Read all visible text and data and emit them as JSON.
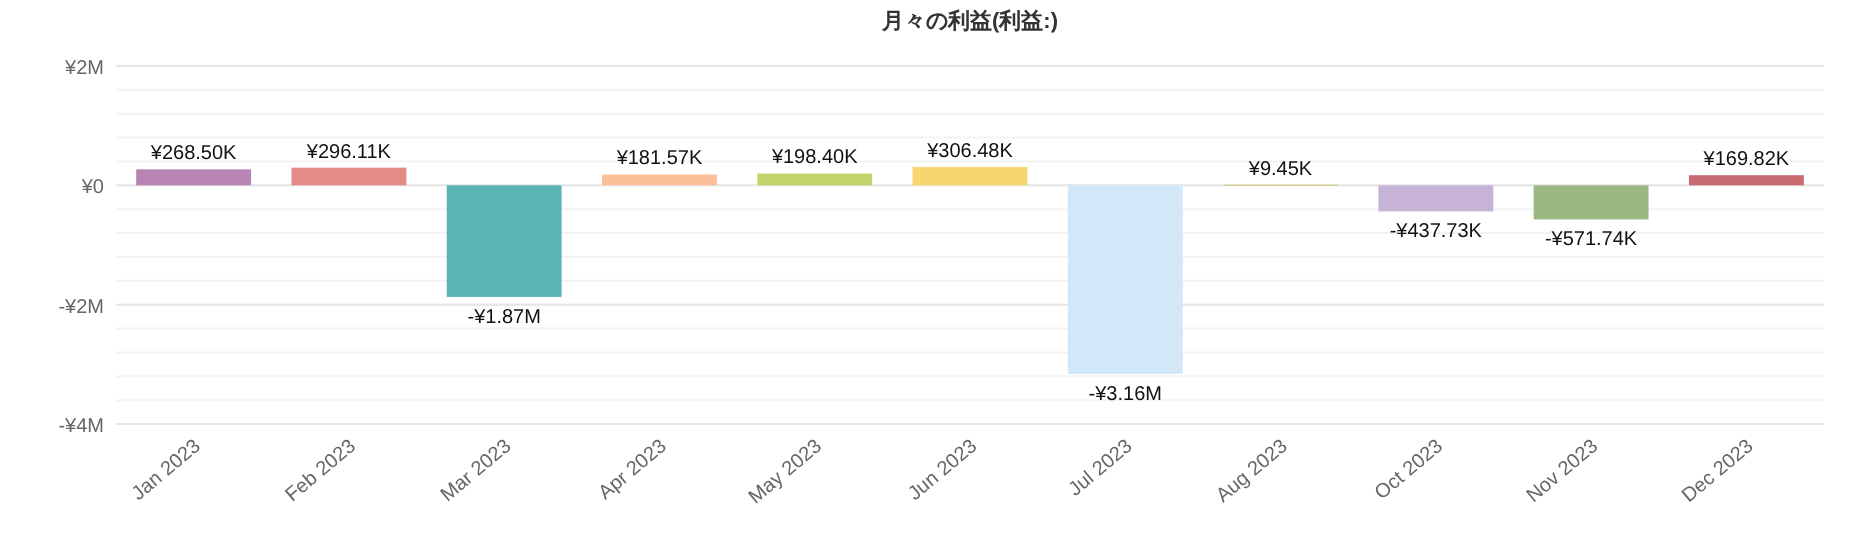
{
  "chart_data": {
    "type": "bar",
    "title": "月々の利益(利益:)",
    "categories": [
      "Jan 2023",
      "Feb 2023",
      "Mar 2023",
      "Apr 2023",
      "May 2023",
      "Jun 2023",
      "Jul 2023",
      "Aug 2023",
      "Oct 2023",
      "Nov 2023",
      "Dec 2023"
    ],
    "values": [
      268500,
      296110,
      -1870000,
      181570,
      198400,
      306480,
      -3160000,
      9450,
      -437730,
      -571740,
      169820
    ],
    "colors": [
      "#b784b4",
      "#e58a87",
      "#5bb4b4",
      "#fbbf9a",
      "#c3d46d",
      "#f7d670",
      "#d2e7f7",
      "#d4c977",
      "#c7b3d6",
      "#9cb882",
      "#c96b73"
    ],
    "value_labels": [
      "¥268.50K",
      "¥296.11K",
      "-¥1.87M",
      "¥181.57K",
      "¥198.40K",
      "¥306.48K",
      "-¥3.16M",
      "¥9.45K",
      "-¥437.73K",
      "-¥571.74K",
      "¥169.82K"
    ],
    "ylim": [
      -4000000,
      2000000
    ],
    "yticks": [
      {
        "value": 2000000,
        "label": "¥2M"
      },
      {
        "value": 0,
        "label": "¥0"
      },
      {
        "value": -2000000,
        "label": "-¥2M"
      },
      {
        "value": -4000000,
        "label": "-¥4M"
      }
    ],
    "grid": "y"
  }
}
